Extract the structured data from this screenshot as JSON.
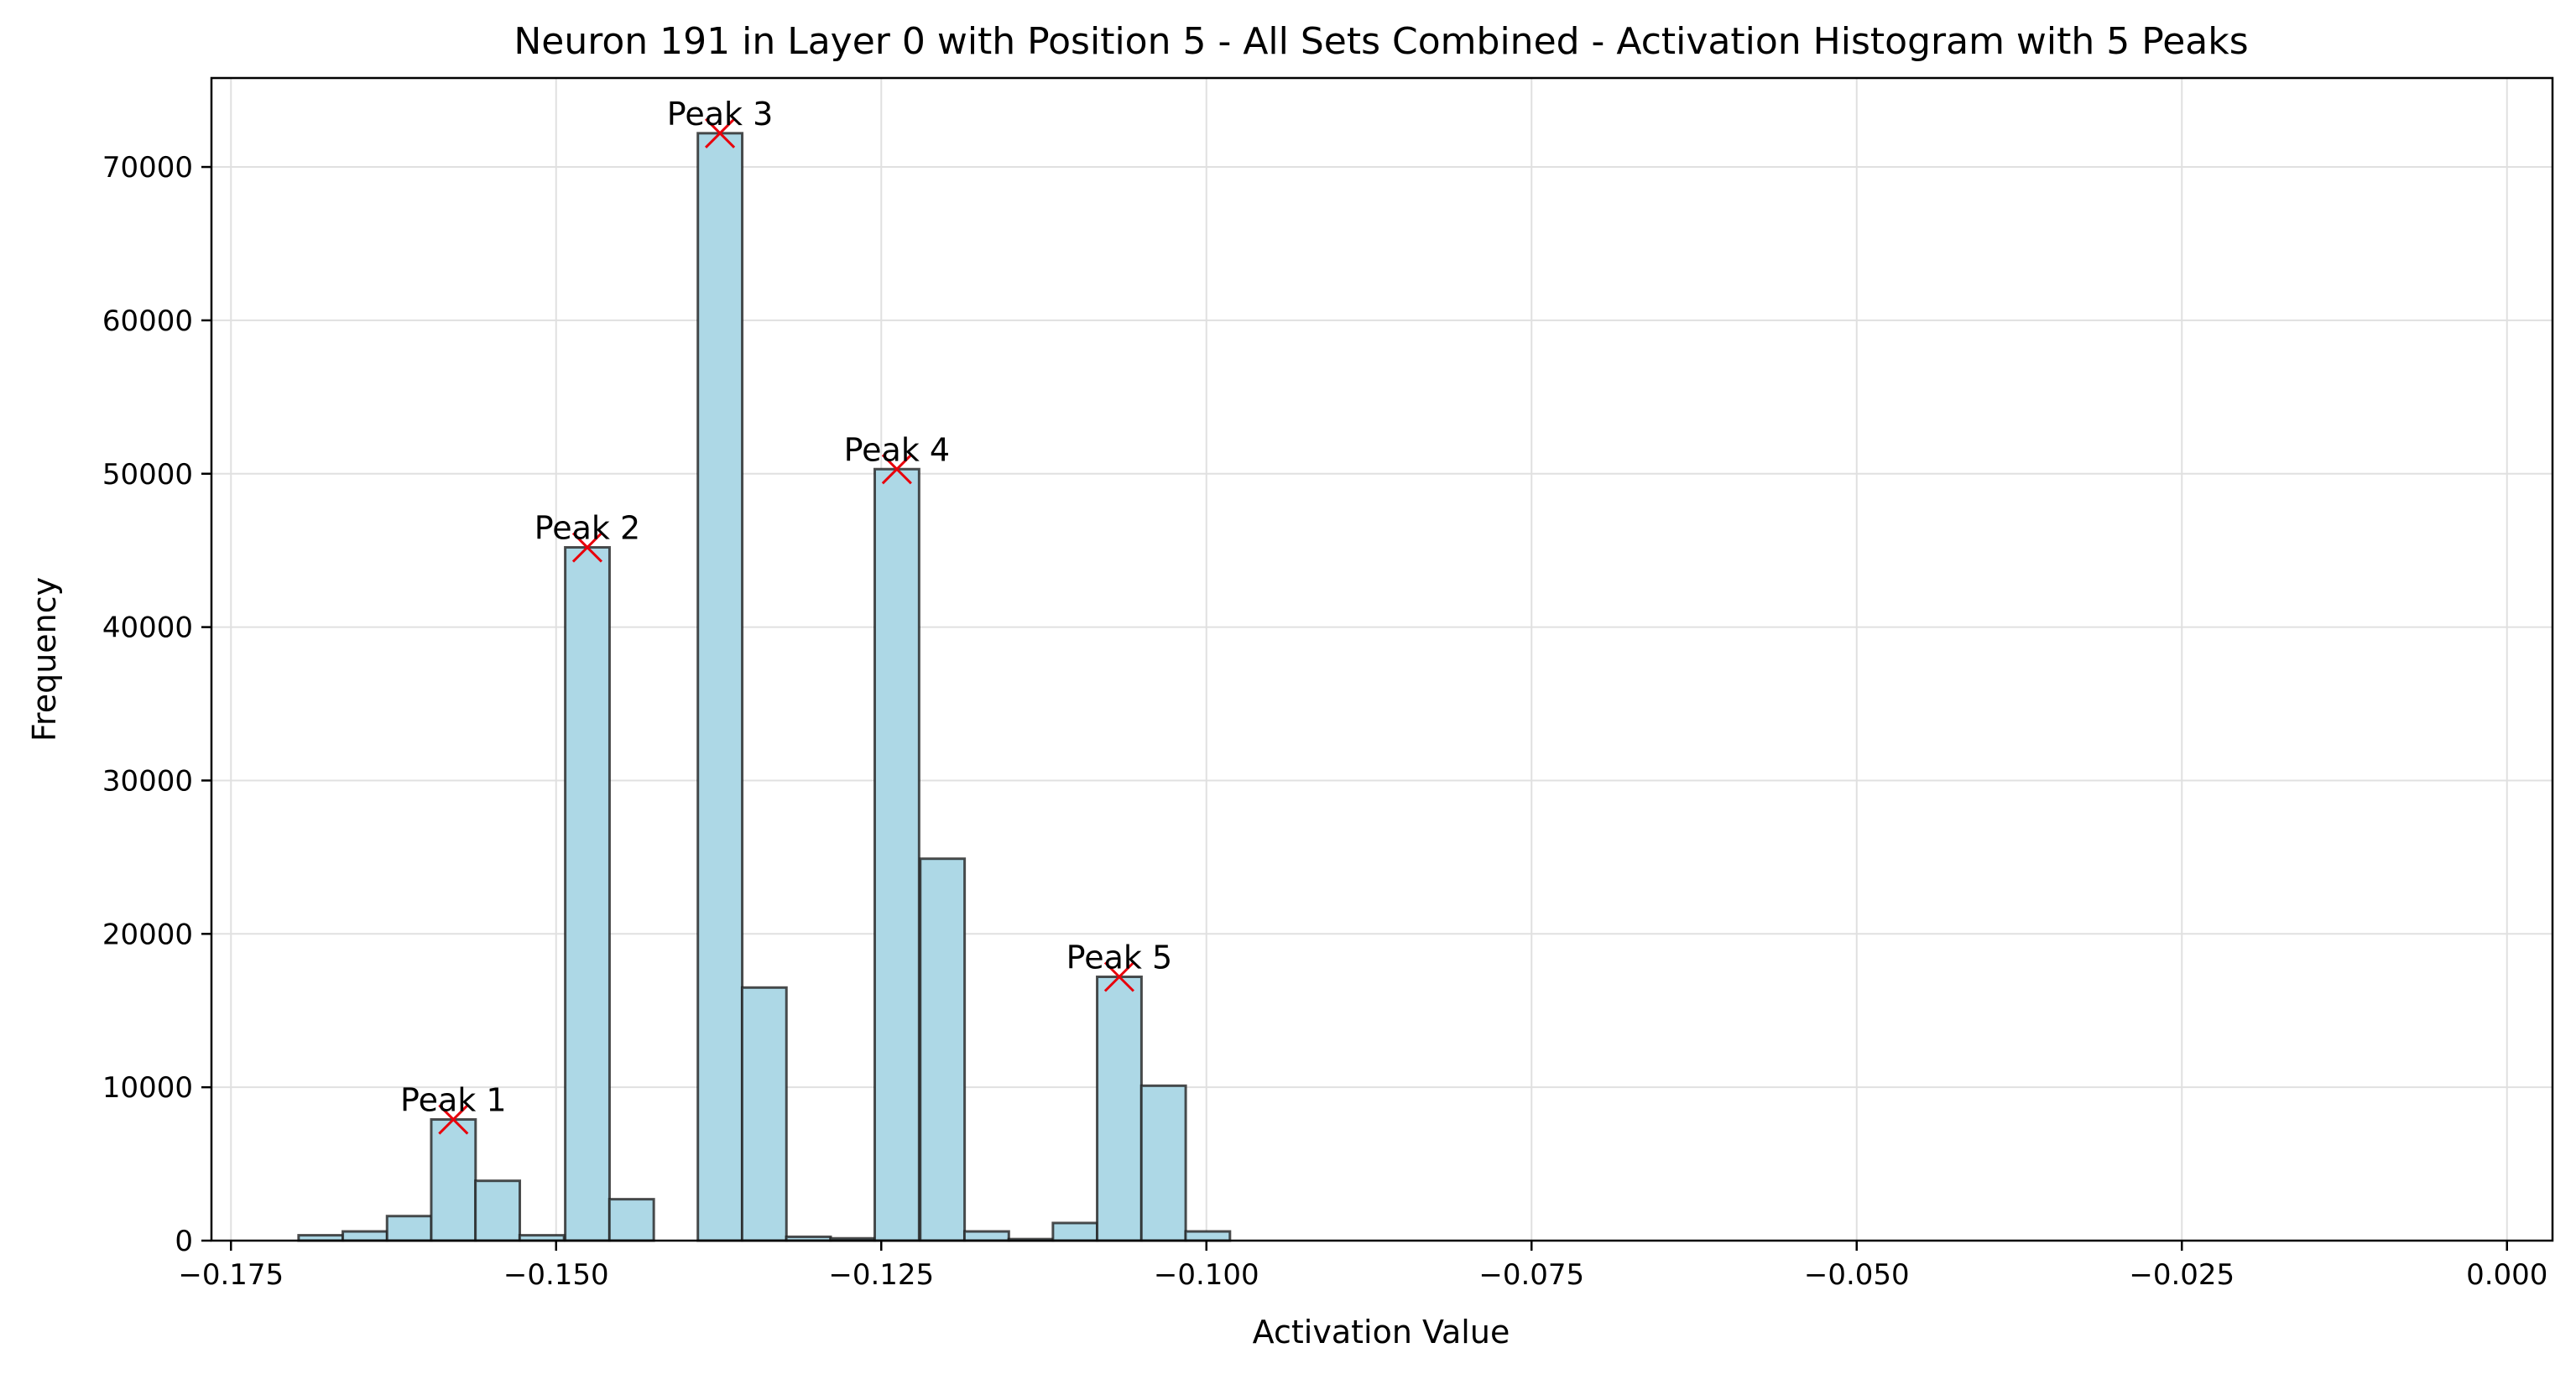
{
  "chart_data": {
    "type": "bar",
    "title": "Neuron 191 in Layer 0 with Position 5 - All Sets Combined - Activation Histogram with 5 Peaks",
    "xlabel": "Activation Value",
    "ylabel": "Frequency",
    "xlim": [
      -0.1765,
      0.0035
    ],
    "ylim": [
      0,
      75800
    ],
    "grid": true,
    "bin_width": 0.00341,
    "x_ticks": [
      -0.175,
      -0.15,
      -0.125,
      -0.1,
      -0.075,
      -0.05,
      -0.025,
      0.0
    ],
    "x_tick_labels": [
      "−0.175",
      "−0.150",
      "−0.125",
      "−0.100",
      "−0.075",
      "−0.050",
      "−0.025",
      "0.000"
    ],
    "y_ticks": [
      0,
      10000,
      20000,
      30000,
      40000,
      50000,
      60000,
      70000
    ],
    "y_tick_labels": [
      "0",
      "10000",
      "20000",
      "30000",
      "40000",
      "50000",
      "60000",
      "70000"
    ],
    "bins": [
      {
        "x": -0.1698,
        "count": 350
      },
      {
        "x": -0.1664,
        "count": 600
      },
      {
        "x": -0.163,
        "count": 1600
      },
      {
        "x": -0.1596,
        "count": 7900
      },
      {
        "x": -0.1562,
        "count": 3900
      },
      {
        "x": -0.1528,
        "count": 350
      },
      {
        "x": -0.1493,
        "count": 45200
      },
      {
        "x": -0.1459,
        "count": 2700
      },
      {
        "x": -0.1425,
        "count": 0
      },
      {
        "x": -0.1391,
        "count": 72200
      },
      {
        "x": -0.1357,
        "count": 16500
      },
      {
        "x": -0.1323,
        "count": 250
      },
      {
        "x": -0.1289,
        "count": 150
      },
      {
        "x": -0.1255,
        "count": 50300
      },
      {
        "x": -0.122,
        "count": 24900
      },
      {
        "x": -0.1186,
        "count": 600
      },
      {
        "x": -0.1152,
        "count": 100
      },
      {
        "x": -0.1118,
        "count": 1150
      },
      {
        "x": -0.1084,
        "count": 17200
      },
      {
        "x": -0.105,
        "count": 10100
      },
      {
        "x": -0.1016,
        "count": 600
      }
    ],
    "peaks": [
      {
        "label": "Peak 1",
        "x": -0.1579,
        "y": 7900
      },
      {
        "label": "Peak 2",
        "x": -0.1476,
        "y": 45200
      },
      {
        "label": "Peak 3",
        "x": -0.1374,
        "y": 72200
      },
      {
        "label": "Peak 4",
        "x": -0.1238,
        "y": 50300
      },
      {
        "label": "Peak 5",
        "x": -0.1067,
        "y": 17200
      }
    ],
    "colors": {
      "bar_fill": "#add8e6",
      "bar_edge": "#222222",
      "peak_marker": "#e8000b",
      "grid": "#e0e0e0",
      "axis": "#000000"
    }
  }
}
